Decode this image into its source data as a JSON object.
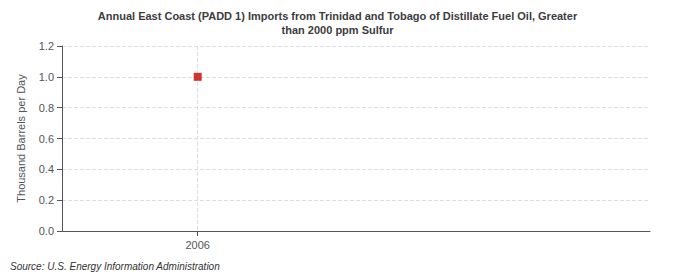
{
  "chart_data": {
    "type": "scatter",
    "title": "Annual East Coast (PADD 1) Imports from Trinidad and Tobago of Distillate Fuel Oil, Greater\nthan 2000 ppm Sulfur",
    "ylabel": "Thousand Barrels per Day",
    "annotation": "Source: U.S. Energy Information Administration",
    "x": [
      2006
    ],
    "values": [
      1.0
    ],
    "color": "#cc0000",
    "marker": "square",
    "xlim": [
      2005.55,
      2007.5
    ],
    "xticks": [
      2006
    ],
    "ylim": [
      0.0,
      1.2
    ],
    "yticks": [
      {
        "value": 0.0,
        "label": "0.0"
      },
      0.2,
      0.4,
      0.6,
      0.8,
      {
        "value": 1.0,
        "label": "1.0"
      },
      1.2
    ],
    "grid": true
  }
}
